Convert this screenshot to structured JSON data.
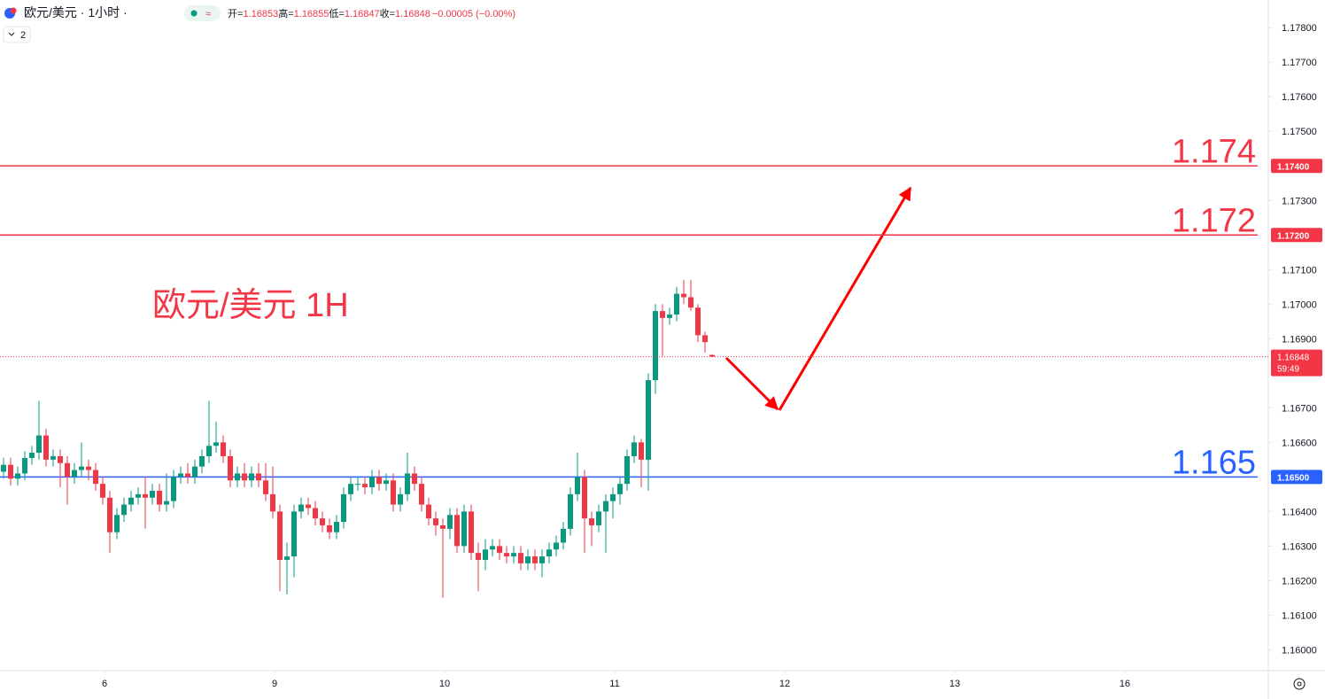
{
  "header": {
    "symbol": "欧元/美元 · 1小时 ·",
    "ohlc_labels": [
      "开=",
      "高=",
      "低=",
      "收="
    ],
    "change": "−0.00005 (−0.00%)",
    "collapsed_count": "2"
  },
  "chart_data": {
    "type": "candlestick",
    "annotation": "欧元/美元 1H",
    "up_color": "#089981",
    "down_color": "#f23645",
    "xlim": [
      0,
      178.75
    ],
    "ylim": [
      1.1596,
      1.1788
    ],
    "xticks": [
      {
        "value": 14.75,
        "label": "6"
      },
      {
        "value": 38.75,
        "label": "9"
      },
      {
        "value": 62.75,
        "label": "10"
      },
      {
        "value": 86.75,
        "label": "11"
      },
      {
        "value": 110.75,
        "label": "12"
      },
      {
        "value": 134.75,
        "label": "13"
      },
      {
        "value": 158.75,
        "label": "16"
      }
    ],
    "yticks": [
      {
        "value": 1.178,
        "label": "1.17800"
      },
      {
        "value": 1.177,
        "label": "1.17700"
      },
      {
        "value": 1.176,
        "label": "1.17600"
      },
      {
        "value": 1.175,
        "label": "1.17500"
      },
      {
        "value": 1.173,
        "label": "1.17300"
      },
      {
        "value": 1.171,
        "label": "1.17100"
      },
      {
        "value": 1.17,
        "label": "1.17000"
      },
      {
        "value": 1.169,
        "label": "1.16900"
      },
      {
        "value": 1.167,
        "label": "1.16700"
      },
      {
        "value": 1.166,
        "label": "1.16600"
      },
      {
        "value": 1.164,
        "label": "1.16400"
      },
      {
        "value": 1.163,
        "label": "1.16300"
      },
      {
        "value": 1.162,
        "label": "1.16200"
      },
      {
        "value": 1.161,
        "label": "1.16100"
      },
      {
        "value": 1.16,
        "label": "1.16000"
      }
    ],
    "levels": [
      {
        "value": 1.174,
        "label": "1.174",
        "axis_label": "1.17400",
        "color": "#f23645"
      },
      {
        "value": 1.172,
        "label": "1.172",
        "axis_label": "1.17200",
        "color": "#f23645"
      },
      {
        "value": 1.165,
        "label": "1.165",
        "axis_label": "1.16500",
        "color": "#2962ff"
      }
    ],
    "countdown": "59:49",
    "open": [
      1.16515,
      1.16535,
      1.16495,
      1.1651,
      1.16555,
      1.1657,
      1.1662,
      1.1655,
      1.1656,
      1.1654,
      1.165,
      1.1652,
      1.1653,
      1.1652,
      1.1648,
      1.1644,
      1.1634,
      1.1639,
      1.1642,
      1.1644,
      1.1645,
      1.1644,
      1.1646,
      1.1642,
      1.1643,
      1.165,
      1.1651,
      1.165,
      1.1653,
      1.1656,
      1.1659,
      1.166,
      1.1656,
      1.1649,
      1.1651,
      1.1649,
      1.1651,
      1.1649,
      1.1645,
      1.164,
      1.1626,
      1.1627,
      1.164,
      1.1642,
      1.1641,
      1.1638,
      1.1636,
      1.1634,
      1.1637,
      1.1645,
      1.1648,
      1.1648,
      1.1647,
      1.165,
      1.1648,
      1.1649,
      1.1642,
      1.1645,
      1.1651,
      1.1648,
      1.1642,
      1.1638,
      1.1636,
      1.1635,
      1.1639,
      1.163,
      1.164,
      1.1628,
      1.1626,
      1.1629,
      1.163,
      1.1628,
      1.1627,
      1.1628,
      1.1625,
      1.1627,
      1.1625,
      1.1627,
      1.1629,
      1.1631,
      1.1635,
      1.1645,
      1.165,
      1.1638,
      1.1636,
      1.164,
      1.1643,
      1.1645,
      1.1648,
      1.1656,
      1.166,
      1.1655,
      1.1678,
      1.1698,
      1.1696,
      1.1697,
      1.1703,
      1.1702,
      1.1699,
      1.1691,
      1.16853
    ],
    "high": [
      1.16555,
      1.16555,
      1.1653,
      1.16575,
      1.1659,
      1.1672,
      1.1664,
      1.1658,
      1.1658,
      1.1656,
      1.1654,
      1.166,
      1.1655,
      1.1654,
      1.165,
      1.1646,
      1.1641,
      1.1644,
      1.1646,
      1.1647,
      1.165,
      1.1648,
      1.1648,
      1.1651,
      1.1652,
      1.1653,
      1.1654,
      1.1655,
      1.1658,
      1.1672,
      1.1666,
      1.1662,
      1.1658,
      1.1653,
      1.1654,
      1.1653,
      1.1654,
      1.1654,
      1.1653,
      1.1642,
      1.1631,
      1.1642,
      1.1644,
      1.1644,
      1.1643,
      1.164,
      1.1638,
      1.1639,
      1.1647,
      1.165,
      1.165,
      1.165,
      1.1652,
      1.1652,
      1.1651,
      1.1651,
      1.1647,
      1.1657,
      1.1653,
      1.165,
      1.1644,
      1.164,
      1.1638,
      1.1641,
      1.1641,
      1.1642,
      1.1642,
      1.1631,
      1.1632,
      1.1632,
      1.1632,
      1.163,
      1.163,
      1.163,
      1.1629,
      1.1629,
      1.1629,
      1.1631,
      1.1633,
      1.1637,
      1.1647,
      1.1657,
      1.1652,
      1.164,
      1.1642,
      1.1645,
      1.1647,
      1.165,
      1.1658,
      1.1662,
      1.1661,
      1.168,
      1.17,
      1.17,
      1.1699,
      1.1705,
      1.1707,
      1.1707,
      1.17,
      1.1692,
      1.16855
    ],
    "low": [
      1.16495,
      1.16475,
      1.16475,
      1.1649,
      1.16535,
      1.1655,
      1.1653,
      1.1653,
      1.1647,
      1.1642,
      1.1648,
      1.165,
      1.1649,
      1.1646,
      1.1642,
      1.1628,
      1.1632,
      1.1637,
      1.164,
      1.1642,
      1.1635,
      1.1642,
      1.164,
      1.164,
      1.1641,
      1.1648,
      1.1648,
      1.1648,
      1.1651,
      1.1654,
      1.1657,
      1.1654,
      1.1647,
      1.1647,
      1.1647,
      1.1647,
      1.1647,
      1.1643,
      1.1638,
      1.1617,
      1.1616,
      1.1621,
      1.1638,
      1.1639,
      1.1636,
      1.1634,
      1.1632,
      1.1632,
      1.1635,
      1.1643,
      1.1646,
      1.1645,
      1.1645,
      1.1646,
      1.1646,
      1.164,
      1.164,
      1.1643,
      1.1646,
      1.164,
      1.1636,
      1.1633,
      1.1615,
      1.1632,
      1.1628,
      1.1628,
      1.1626,
      1.1617,
      1.1623,
      1.1627,
      1.1626,
      1.1625,
      1.1625,
      1.1623,
      1.1623,
      1.1623,
      1.1621,
      1.1625,
      1.1627,
      1.1629,
      1.1633,
      1.1643,
      1.1628,
      1.163,
      1.1634,
      1.1628,
      1.1638,
      1.1642,
      1.1646,
      1.1654,
      1.1647,
      1.1646,
      1.1674,
      1.1685,
      1.1694,
      1.1695,
      1.17,
      1.1698,
      1.1689,
      1.1686,
      1.16847
    ],
    "close": [
      1.16535,
      1.16495,
      1.1651,
      1.16555,
      1.1657,
      1.1662,
      1.1655,
      1.1656,
      1.1654,
      1.165,
      1.1652,
      1.1653,
      1.1652,
      1.1648,
      1.1644,
      1.1634,
      1.1639,
      1.1642,
      1.1644,
      1.1645,
      1.1644,
      1.1646,
      1.1642,
      1.1643,
      1.165,
      1.1651,
      1.165,
      1.1653,
      1.1656,
      1.1659,
      1.166,
      1.1656,
      1.1649,
      1.1651,
      1.1649,
      1.1651,
      1.1649,
      1.1645,
      1.164,
      1.1626,
      1.1627,
      1.164,
      1.1642,
      1.1641,
      1.1638,
      1.1636,
      1.1634,
      1.1637,
      1.1645,
      1.1648,
      1.1648,
      1.1647,
      1.165,
      1.1648,
      1.1649,
      1.1642,
      1.1645,
      1.1651,
      1.1648,
      1.1642,
      1.1638,
      1.1636,
      1.1635,
      1.1639,
      1.163,
      1.164,
      1.1628,
      1.1626,
      1.1629,
      1.163,
      1.1628,
      1.1627,
      1.1628,
      1.1625,
      1.1627,
      1.1625,
      1.1627,
      1.1629,
      1.1631,
      1.1635,
      1.1645,
      1.165,
      1.1638,
      1.1636,
      1.164,
      1.1643,
      1.1645,
      1.1648,
      1.1656,
      1.166,
      1.1655,
      1.1678,
      1.1698,
      1.1696,
      1.1697,
      1.1703,
      1.1702,
      1.1699,
      1.1691,
      1.1689,
      1.16848
    ]
  }
}
